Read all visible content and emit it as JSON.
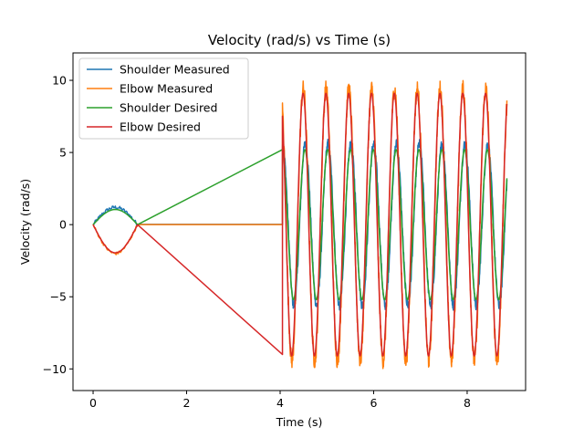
{
  "chart_data": {
    "type": "line",
    "title": "Velocity (rad/s) vs Time (s)",
    "xlabel": "Time (s)",
    "ylabel": "Velocity (rad/s)",
    "xlim": [
      -0.43,
      9.25
    ],
    "ylim": [
      -11.5,
      11.9
    ],
    "xticks": [
      0,
      2,
      4,
      6,
      8
    ],
    "yticks": [
      -10,
      -5,
      0,
      5,
      10
    ],
    "xtick_labels": [
      "0",
      "2",
      "4",
      "6",
      "8"
    ],
    "ytick_labels": [
      "−10",
      "−5",
      "0",
      "5",
      "10"
    ],
    "grid": false,
    "legend_position": "top-left",
    "series": [
      {
        "name": "Shoulder Measured",
        "color": "#1f77b4",
        "segments": [
          {
            "kind": "bump",
            "t0": 0,
            "t1": 0.95,
            "amp": 1.2,
            "noise": 0.12
          },
          {
            "kind": "flat",
            "t0": 0.95,
            "t1": 4.05,
            "value": 0.02
          },
          {
            "kind": "osc",
            "t0": 4.05,
            "t1": 8.85,
            "freq": 2.05,
            "amp": 5.6,
            "phase": 0.0,
            "noise": 0.35
          }
        ]
      },
      {
        "name": "Elbow Measured",
        "color": "#ff7f0e",
        "segments": [
          {
            "kind": "bump",
            "t0": 0,
            "t1": 0.95,
            "amp": -2.0,
            "noise": 0.1
          },
          {
            "kind": "flat",
            "t0": 0.95,
            "t1": 4.05,
            "value": 0.0
          },
          {
            "kind": "osc",
            "t0": 4.05,
            "t1": 8.85,
            "freq": 2.05,
            "amp": 9.4,
            "phase": 0.55,
            "noise": 0.6
          }
        ]
      },
      {
        "name": "Shoulder Desired",
        "color": "#2ca02c",
        "segments": [
          {
            "kind": "bump",
            "t0": 0,
            "t1": 0.95,
            "amp": 1.05,
            "noise": 0.0
          },
          {
            "kind": "line",
            "t0": 0.95,
            "t1": 4.05,
            "v0": 0.0,
            "v1": 5.2
          },
          {
            "kind": "osc",
            "t0": 4.05,
            "t1": 8.85,
            "freq": 2.05,
            "amp": 5.2,
            "phase": 0.1,
            "noise": 0.0
          }
        ]
      },
      {
        "name": "Elbow Desired",
        "color": "#d62728",
        "segments": [
          {
            "kind": "bump",
            "t0": 0,
            "t1": 0.95,
            "amp": -1.95,
            "noise": 0.0
          },
          {
            "kind": "line",
            "t0": 0.95,
            "t1": 4.05,
            "v0": 0.0,
            "v1": -9.0
          },
          {
            "kind": "osc",
            "t0": 4.05,
            "t1": 8.85,
            "freq": 2.05,
            "amp": 9.1,
            "phase": 0.6,
            "noise": 0.0
          }
        ]
      }
    ]
  }
}
